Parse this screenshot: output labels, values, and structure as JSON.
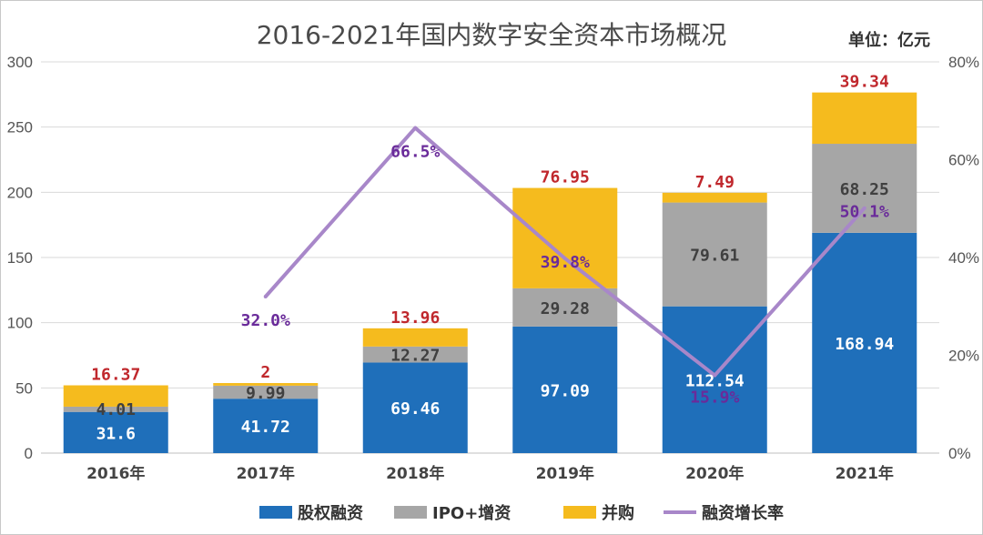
{
  "chart_data": {
    "type": "bar",
    "stacked": true,
    "title": "2016-2021年国内数字安全资本市场概况",
    "unit_label": "单位：亿元",
    "categories": [
      "2016年",
      "2017年",
      "2018年",
      "2019年",
      "2020年",
      "2021年"
    ],
    "series": [
      {
        "name": "股权融资",
        "type": "bar",
        "color": "#1f6fba",
        "label_color": "#ffffff",
        "values": [
          31.6,
          41.72,
          69.46,
          97.09,
          112.54,
          168.94
        ],
        "labels": [
          "31.6",
          "41.72",
          "69.46",
          "97.09",
          "112.54",
          "168.94"
        ]
      },
      {
        "name": "IPO+增资",
        "type": "bar",
        "color": "#a6a6a6",
        "label_color": "#404040",
        "values": [
          4.01,
          9.99,
          12.27,
          29.28,
          79.61,
          68.25
        ],
        "labels": [
          "4.01",
          "9.99",
          "12.27",
          "29.28",
          "79.61",
          "68.25"
        ]
      },
      {
        "name": "并购",
        "type": "bar",
        "color": "#f5bb1e",
        "label_color": "#c0282d",
        "values": [
          16.37,
          2,
          13.96,
          76.95,
          7.49,
          39.34
        ],
        "labels": [
          "16.37",
          "2",
          "13.96",
          "76.95",
          "7.49",
          "39.34"
        ]
      },
      {
        "name": "融资增长率",
        "type": "line",
        "axis": "right",
        "color": "#a887c9",
        "label_color": "#6a2b9a",
        "values": [
          null,
          32.0,
          66.5,
          39.8,
          15.9,
          50.1
        ],
        "labels": [
          "",
          "32.0%",
          "66.5%",
          "39.8%",
          "15.9%",
          "50.1%"
        ]
      }
    ],
    "y_left": {
      "min": 0,
      "max": 300,
      "ticks": [
        "0",
        "50",
        "100",
        "150",
        "200",
        "250",
        "300"
      ]
    },
    "y_right": {
      "min": 0,
      "max": 80,
      "ticks": [
        "0%",
        "20%",
        "40%",
        "60%",
        "80%"
      ]
    },
    "grid": true,
    "legend_position": "bottom"
  }
}
